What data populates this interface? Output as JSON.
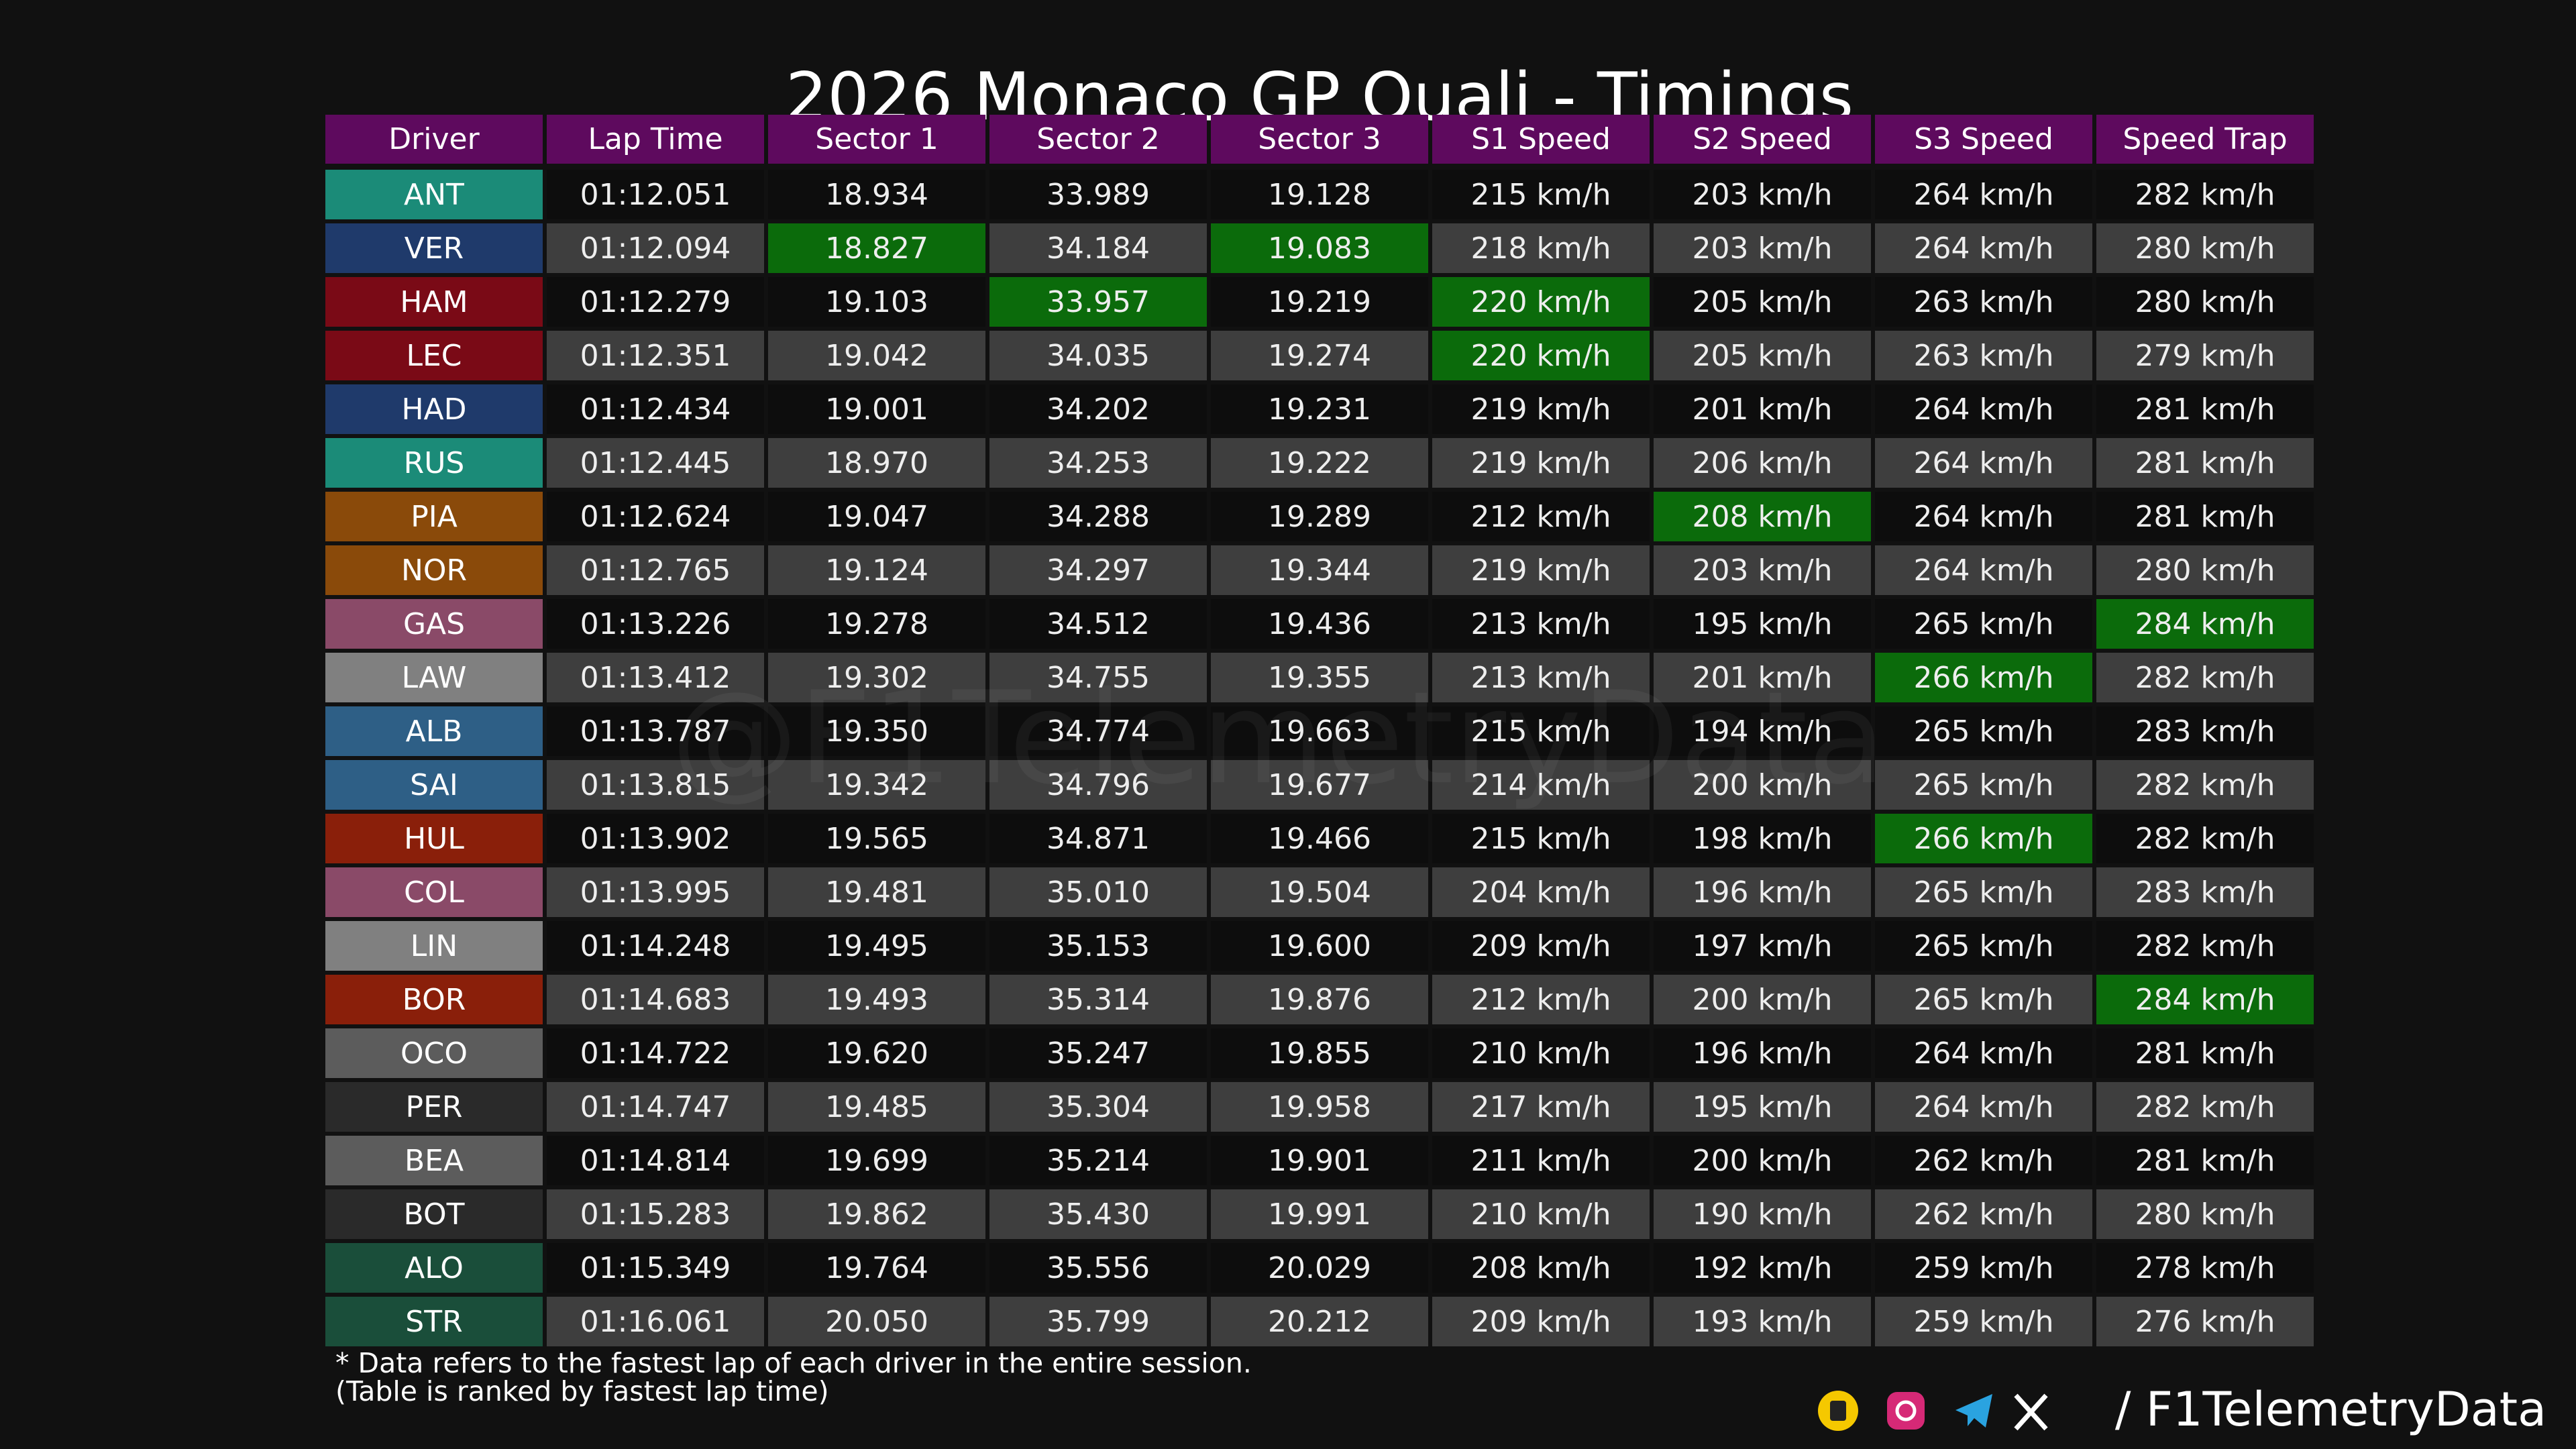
{
  "title": "2026 Monaco GP Quali - Timings",
  "columns": [
    "Driver",
    "Lap Time",
    "Sector 1",
    "Sector 2",
    "Sector 3",
    "S1 Speed",
    "S2 Speed",
    "S3 Speed",
    "Speed Trap"
  ],
  "header_color": "#5e0a5e",
  "row_colors": [
    "#0d0d0d",
    "#3e3e3e"
  ],
  "highlight_color": "#0b6b0b",
  "rows": [
    {
      "cells": [
        "ANT",
        "01:12.051",
        "18.934",
        "33.989",
        "19.128",
        "215 km/h",
        "203 km/h",
        "264 km/h",
        "282 km/h"
      ],
      "color": "#1b8b78",
      "highlight": []
    },
    {
      "cells": [
        "VER",
        "01:12.094",
        "18.827",
        "34.184",
        "19.083",
        "218 km/h",
        "203 km/h",
        "264 km/h",
        "280 km/h"
      ],
      "color": "#1f3a6b",
      "highlight": [
        2,
        4
      ]
    },
    {
      "cells": [
        "HAM",
        "01:12.279",
        "19.103",
        "33.957",
        "19.219",
        "220 km/h",
        "205 km/h",
        "263 km/h",
        "280 km/h"
      ],
      "color": "#7a0a16",
      "highlight": [
        3,
        5
      ]
    },
    {
      "cells": [
        "LEC",
        "01:12.351",
        "19.042",
        "34.035",
        "19.274",
        "220 km/h",
        "205 km/h",
        "263 km/h",
        "279 km/h"
      ],
      "color": "#7a0a16",
      "highlight": [
        5
      ]
    },
    {
      "cells": [
        "HAD",
        "01:12.434",
        "19.001",
        "34.202",
        "19.231",
        "219 km/h",
        "201 km/h",
        "264 km/h",
        "281 km/h"
      ],
      "color": "#1f3a6b",
      "highlight": []
    },
    {
      "cells": [
        "RUS",
        "01:12.445",
        "18.970",
        "34.253",
        "19.222",
        "219 km/h",
        "206 km/h",
        "264 km/h",
        "281 km/h"
      ],
      "color": "#1b8b78",
      "highlight": []
    },
    {
      "cells": [
        "PIA",
        "01:12.624",
        "19.047",
        "34.288",
        "19.289",
        "212 km/h",
        "208 km/h",
        "264 km/h",
        "281 km/h"
      ],
      "color": "#8a4a0a",
      "highlight": [
        6
      ]
    },
    {
      "cells": [
        "NOR",
        "01:12.765",
        "19.124",
        "34.297",
        "19.344",
        "219 km/h",
        "203 km/h",
        "264 km/h",
        "280 km/h"
      ],
      "color": "#8a4a0a",
      "highlight": []
    },
    {
      "cells": [
        "GAS",
        "01:13.226",
        "19.278",
        "34.512",
        "19.436",
        "213 km/h",
        "195 km/h",
        "265 km/h",
        "284 km/h"
      ],
      "color": "#8a4a68",
      "highlight": [
        8
      ]
    },
    {
      "cells": [
        "LAW",
        "01:13.412",
        "19.302",
        "34.755",
        "19.355",
        "213 km/h",
        "201 km/h",
        "266 km/h",
        "282 km/h"
      ],
      "color": "#808080",
      "highlight": [
        7
      ]
    },
    {
      "cells": [
        "ALB",
        "01:13.787",
        "19.350",
        "34.774",
        "19.663",
        "215 km/h",
        "194 km/h",
        "265 km/h",
        "283 km/h"
      ],
      "color": "#2e5f86",
      "highlight": []
    },
    {
      "cells": [
        "SAI",
        "01:13.815",
        "19.342",
        "34.796",
        "19.677",
        "214 km/h",
        "200 km/h",
        "265 km/h",
        "282 km/h"
      ],
      "color": "#2e5f86",
      "highlight": []
    },
    {
      "cells": [
        "HUL",
        "01:13.902",
        "19.565",
        "34.871",
        "19.466",
        "215 km/h",
        "198 km/h",
        "266 km/h",
        "282 km/h"
      ],
      "color": "#8a1f0a",
      "highlight": [
        7
      ]
    },
    {
      "cells": [
        "COL",
        "01:13.995",
        "19.481",
        "35.010",
        "19.504",
        "204 km/h",
        "196 km/h",
        "265 km/h",
        "283 km/h"
      ],
      "color": "#8a4a68",
      "highlight": []
    },
    {
      "cells": [
        "LIN",
        "01:14.248",
        "19.495",
        "35.153",
        "19.600",
        "209 km/h",
        "197 km/h",
        "265 km/h",
        "282 km/h"
      ],
      "color": "#808080",
      "highlight": []
    },
    {
      "cells": [
        "BOR",
        "01:14.683",
        "19.493",
        "35.314",
        "19.876",
        "212 km/h",
        "200 km/h",
        "265 km/h",
        "284 km/h"
      ],
      "color": "#8a1f0a",
      "highlight": [
        8
      ]
    },
    {
      "cells": [
        "OCO",
        "01:14.722",
        "19.620",
        "35.247",
        "19.855",
        "210 km/h",
        "196 km/h",
        "264 km/h",
        "281 km/h"
      ],
      "color": "#5c5c5c",
      "highlight": []
    },
    {
      "cells": [
        "PER",
        "01:14.747",
        "19.485",
        "35.304",
        "19.958",
        "217 km/h",
        "195 km/h",
        "264 km/h",
        "282 km/h"
      ],
      "color": "#2a2a2a",
      "highlight": []
    },
    {
      "cells": [
        "BEA",
        "01:14.814",
        "19.699",
        "35.214",
        "19.901",
        "211 km/h",
        "200 km/h",
        "262 km/h",
        "281 km/h"
      ],
      "color": "#5c5c5c",
      "highlight": []
    },
    {
      "cells": [
        "BOT",
        "01:15.283",
        "19.862",
        "35.430",
        "19.991",
        "210 km/h",
        "190 km/h",
        "262 km/h",
        "280 km/h"
      ],
      "color": "#2a2a2a",
      "highlight": []
    },
    {
      "cells": [
        "ALO",
        "01:15.349",
        "19.764",
        "35.556",
        "20.029",
        "208 km/h",
        "192 km/h",
        "259 km/h",
        "278 km/h"
      ],
      "color": "#1a4e3a",
      "highlight": []
    },
    {
      "cells": [
        "STR",
        "01:16.061",
        "20.050",
        "35.799",
        "20.212",
        "209 km/h",
        "193 km/h",
        "259 km/h",
        "276 km/h"
      ],
      "color": "#1a4e3a",
      "highlight": []
    }
  ],
  "watermark": "@F1TelemetryData",
  "notes": [
    "* Data refers to the fastest lap of each driver in the entire session.",
    "(Table is ranked by fastest lap time)"
  ],
  "handle": "/ F1TelemetryData"
}
